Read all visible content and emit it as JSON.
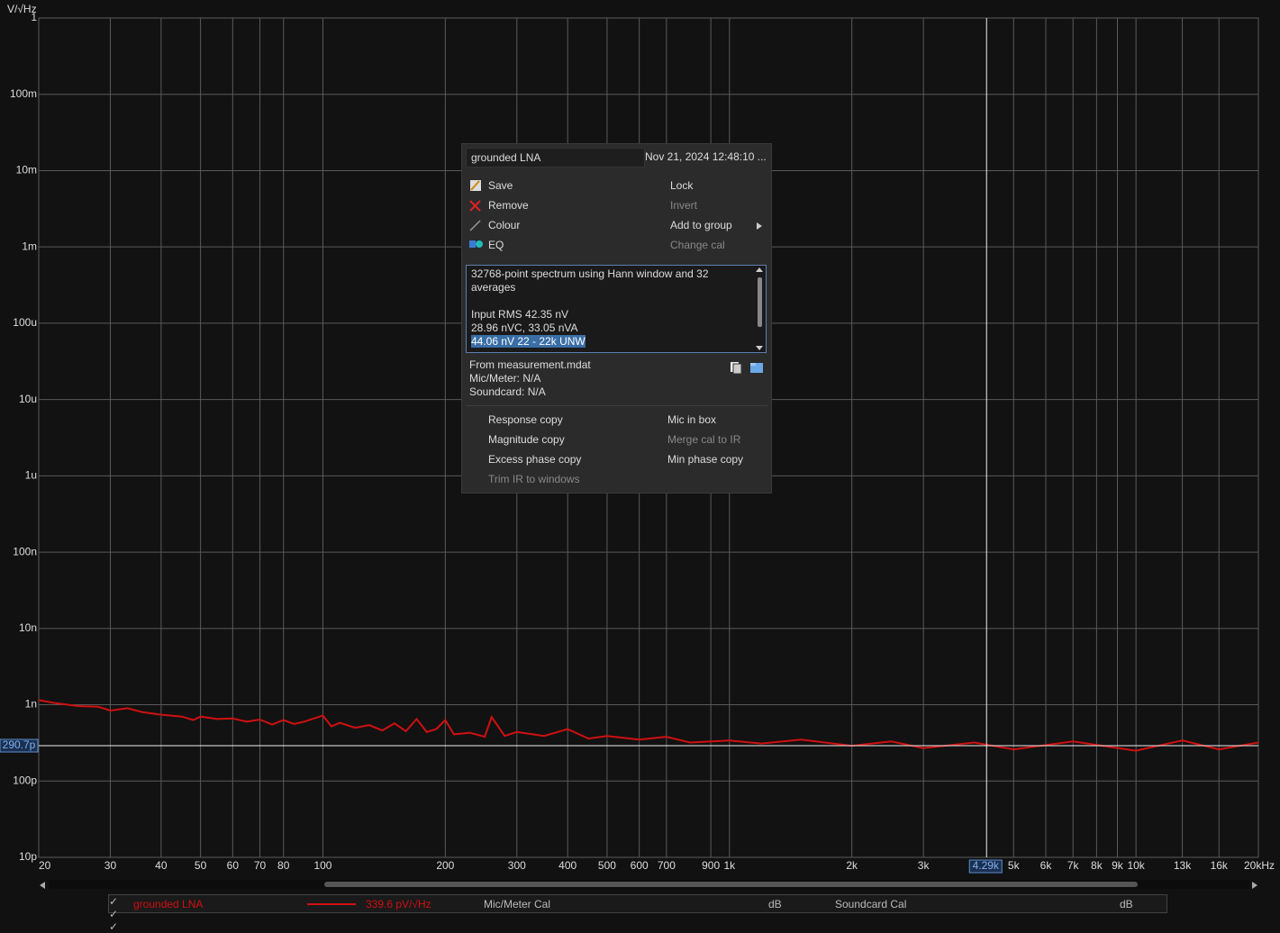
{
  "chart_data": {
    "type": "line",
    "y_unit": "V/√Hz",
    "xscale": "log",
    "yscale": "log",
    "grid": true,
    "xlim": [
      20,
      20000
    ],
    "ylim": [
      1e-11,
      1
    ],
    "xticks": [
      20,
      30,
      40,
      50,
      60,
      70,
      80,
      100,
      200,
      300,
      400,
      500,
      600,
      700,
      {
        "value": 900,
        "label": "900"
      },
      {
        "value": 1000,
        "label": "1k"
      },
      {
        "value": 2000,
        "label": "2k"
      },
      {
        "value": 3000,
        "label": "3k"
      },
      {
        "value": 5000,
        "label": "5k"
      },
      {
        "value": 6000,
        "label": "6k"
      },
      {
        "value": 7000,
        "label": "7k"
      },
      {
        "value": 8000,
        "label": "8k"
      },
      {
        "value": 9000,
        "label": "9k"
      },
      {
        "value": 10000,
        "label": "10k"
      },
      {
        "value": 13000,
        "label": "13k"
      },
      {
        "value": 16000,
        "label": "16k"
      },
      {
        "value": 20000,
        "label": "20kHz"
      }
    ],
    "yticks": [
      1,
      {
        "value": 0.1,
        "label": "100m"
      },
      {
        "value": 0.01,
        "label": "10m"
      },
      {
        "value": 0.001,
        "label": "1m"
      },
      {
        "value": 0.0001,
        "label": "100u"
      },
      {
        "value": 1e-05,
        "label": "10u"
      },
      {
        "value": 1e-06,
        "label": "1u"
      },
      {
        "value": 1e-07,
        "label": "100n"
      },
      {
        "value": 1e-08,
        "label": "10n"
      },
      {
        "value": 1e-09,
        "label": "1n"
      },
      {
        "value": 1e-10,
        "label": "100p"
      },
      {
        "value": 1e-11,
        "label": "10p"
      }
    ],
    "x": [
      20,
      22,
      25,
      28,
      30,
      33,
      36,
      40,
      45,
      48,
      50,
      55,
      60,
      65,
      70,
      75,
      80,
      85,
      90,
      95,
      100,
      105,
      110,
      120,
      130,
      140,
      150,
      160,
      170,
      180,
      190,
      200,
      210,
      230,
      250,
      260,
      280,
      300,
      350,
      400,
      450,
      500,
      600,
      700,
      800,
      1000,
      1200,
      1500,
      2000,
      2500,
      3000,
      4000,
      5000,
      7000,
      10000,
      13000,
      16000,
      20000
    ],
    "series": [
      {
        "name": "grounded LNA",
        "color": "#d01010",
        "values": [
          1.15e-09,
          1.05e-09,
          9.6e-10,
          9.4e-10,
          8.4e-10,
          9e-10,
          8e-10,
          7.4e-10,
          7e-10,
          6.3e-10,
          7e-10,
          6.5e-10,
          6.6e-10,
          6e-10,
          6.4e-10,
          5.5e-10,
          6.3e-10,
          5.6e-10,
          6e-10,
          6.6e-10,
          7.2e-10,
          5.2e-10,
          5.8e-10,
          5e-10,
          5.4e-10,
          4.6e-10,
          5.7e-10,
          4.5e-10,
          6.5e-10,
          4.4e-10,
          4.8e-10,
          6.3e-10,
          4.1e-10,
          4.3e-10,
          3.8e-10,
          6.9e-10,
          3.9e-10,
          4.4e-10,
          3.9e-10,
          4.8e-10,
          3.6e-10,
          3.9e-10,
          3.5e-10,
          3.8e-10,
          3.2e-10,
          3.4e-10,
          3.1e-10,
          3.5e-10,
          2.9e-10,
          3.3e-10,
          2.7e-10,
          3.2e-10,
          2.6e-10,
          3.3e-10,
          2.5e-10,
          3.4e-10,
          2.6e-10,
          3.2e-10
        ],
        "readout": {
          "value": 3.396e-10,
          "label": "339.6 pV/√Hz"
        }
      }
    ],
    "cursor": {
      "x": {
        "value": 4290,
        "label": "4.29k"
      },
      "y": {
        "value": 2.907e-10,
        "label": "290.7p"
      }
    },
    "calibrations": [
      {
        "name": "Mic/Meter Cal",
        "unit": "dB"
      },
      {
        "name": "Soundcard Cal",
        "unit": "dB"
      }
    ]
  },
  "menu": {
    "name": "grounded LNA",
    "date": "Nov 21, 2024 12:48:10 ...",
    "actions_left": [
      {
        "label": "Save",
        "enabled": true
      },
      {
        "label": "Remove",
        "enabled": true
      },
      {
        "label": "Colour",
        "enabled": true
      },
      {
        "label": "EQ",
        "enabled": true
      }
    ],
    "actions_right": [
      {
        "label": "Lock",
        "enabled": true
      },
      {
        "label": "Invert",
        "enabled": false
      },
      {
        "label": "Add to group",
        "enabled": true
      },
      {
        "label": "Change cal",
        "enabled": false
      }
    ],
    "info": [
      "32768-point spectrum using Hann window and 32 averages",
      "Input RMS 42.35 nV",
      "28.96 nVC, 33.05 nVA",
      "44.06 nV 22 - 22k UNW"
    ],
    "source": [
      "From measurement.mdat",
      "Mic/Meter: N/A",
      "Soundcard: N/A"
    ],
    "copy_left": [
      {
        "label": "Response copy",
        "enabled": true
      },
      {
        "label": "Magnitude copy",
        "enabled": true
      },
      {
        "label": "Excess phase copy",
        "enabled": true
      },
      {
        "label": "Trim IR to windows",
        "enabled": false
      }
    ],
    "copy_right": [
      {
        "label": "Mic in box",
        "enabled": true
      },
      {
        "label": "Merge cal to IR",
        "enabled": false
      },
      {
        "label": "Min phase copy",
        "enabled": true
      }
    ]
  }
}
